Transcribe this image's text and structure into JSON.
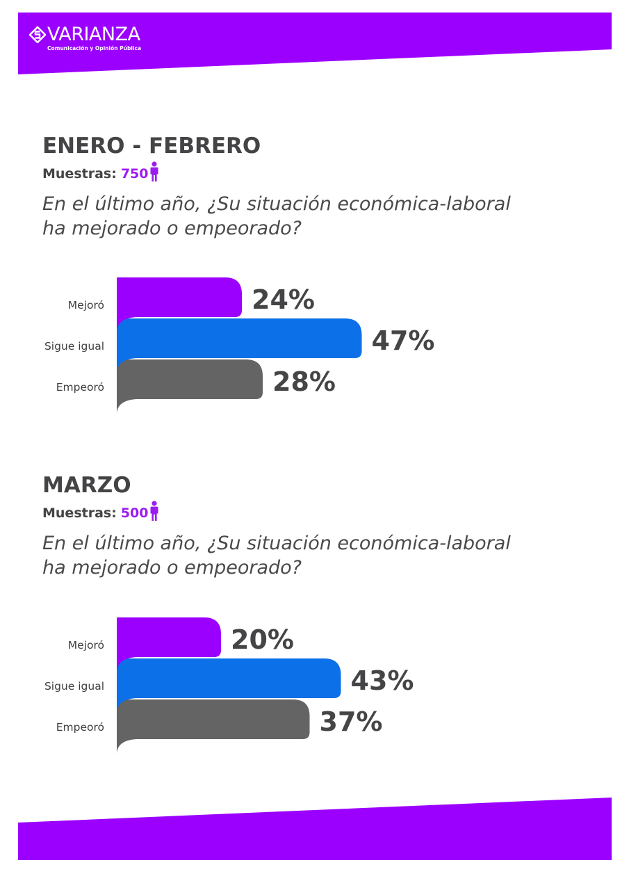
{
  "brand": {
    "name": "VARIANZA",
    "tagline": "Comunicación y Opinión Pública",
    "color": "#9b00ff"
  },
  "sections": [
    {
      "title": "ENERO - FEBRERO",
      "samples_label": "Muestras:",
      "samples_value": "750",
      "question_line1": "En el último año, ¿Su situación económica-laboral",
      "question_line2": "ha mejorado o empeorado?"
    },
    {
      "title": "MARZO",
      "samples_label": "Muestras:",
      "samples_value": "500",
      "question_line1": "En el último año, ¿Su situación económica-laboral",
      "question_line2": "ha mejorado o empeorado?"
    }
  ],
  "chart_data": [
    {
      "type": "bar",
      "orientation": "horizontal",
      "categories": [
        "Mejoró",
        "Sigue igual",
        "Empeoró"
      ],
      "values": [
        24,
        47,
        28
      ],
      "value_labels": [
        "24%",
        "47%",
        "28%"
      ],
      "colors": [
        "#9b00ff",
        "#0c70e8",
        "#646464"
      ]
    },
    {
      "type": "bar",
      "orientation": "horizontal",
      "categories": [
        "Mejoró",
        "Sigue igual",
        "Empeoró"
      ],
      "values": [
        20,
        43,
        37
      ],
      "value_labels": [
        "20%",
        "43%",
        "37%"
      ],
      "colors": [
        "#9b00ff",
        "#0c70e8",
        "#646464"
      ]
    }
  ]
}
